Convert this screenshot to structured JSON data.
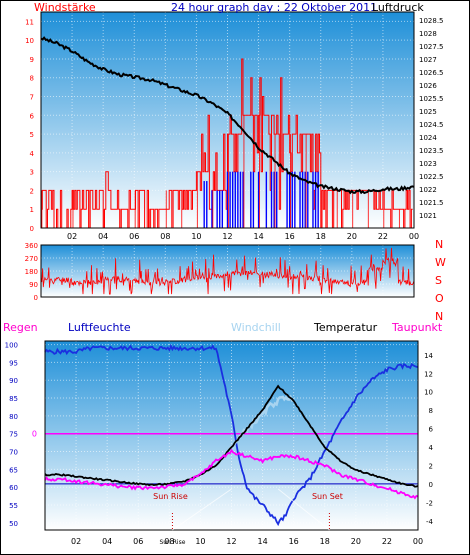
{
  "chart_data": [
    {
      "type": "line",
      "title": "24 hour graph day : 22 Oktober 2011",
      "left_label": "Windstärke",
      "right_label": "Luftdruck",
      "x_ticks": [
        "02",
        "04",
        "06",
        "08",
        "10",
        "12",
        "14",
        "16",
        "18",
        "20",
        "22",
        "00"
      ],
      "y_left_ticks": [
        "0",
        "1",
        "2",
        "3",
        "4",
        "5",
        "6",
        "7",
        "8",
        "9",
        "10",
        "11"
      ],
      "y_right_ticks": [
        "1021",
        "1021.5",
        "1022",
        "1022.5",
        "1023",
        "1023.5",
        "1024",
        "1024.5",
        "1025",
        "1025.5",
        "1026",
        "1026.5",
        "1027",
        "1027.5",
        "1028",
        "1028.5"
      ],
      "y_left_range": [
        0,
        11.5
      ],
      "y_right_range": [
        1020.5,
        1028.8
      ],
      "wind_speed_hourly": [
        2,
        0,
        2,
        2,
        1,
        1,
        2,
        1,
        2,
        2,
        3,
        2,
        5,
        6,
        6,
        5,
        5,
        5,
        2,
        2,
        2,
        2,
        1,
        1
      ],
      "wind_gust_hourly": [
        2,
        2,
        2,
        2,
        3,
        2,
        2,
        2,
        2,
        2,
        6,
        8,
        10,
        9,
        9,
        8,
        8,
        6,
        2,
        2,
        2,
        2,
        2,
        2
      ],
      "pressure": {
        "x": [
          0,
          1,
          2,
          3,
          4,
          5,
          6,
          7,
          8,
          9,
          10,
          11,
          12,
          13,
          14,
          15,
          16,
          17,
          18,
          19,
          20,
          21,
          22,
          23,
          24
        ],
        "y": [
          1027.8,
          1027.6,
          1027.3,
          1026.9,
          1026.6,
          1026.4,
          1026.3,
          1026.2,
          1026.0,
          1025.8,
          1025.6,
          1025.3,
          1024.9,
          1024.3,
          1023.6,
          1023.1,
          1022.6,
          1022.3,
          1022.1,
          1022.0,
          1021.9,
          1021.9,
          1022.0,
          1022.0,
          1022.1
        ]
      }
    },
    {
      "type": "line",
      "title": "",
      "y_ticks": [
        "360",
        "270",
        "180",
        "90",
        "0"
      ],
      "direction_labels": [
        "N",
        "W",
        "S",
        "O",
        "N"
      ],
      "y_range": [
        0,
        360
      ],
      "wind_direction_hourly": [
        120,
        120,
        100,
        100,
        130,
        120,
        110,
        100,
        110,
        120,
        140,
        150,
        160,
        170,
        160,
        150,
        140,
        130,
        110,
        100,
        100,
        200,
        250,
        100
      ]
    },
    {
      "type": "line",
      "title": "",
      "labels": {
        "regen": "Regen",
        "luftfeuchte": "Luftfeuchte",
        "windchill": "Windchill",
        "temperatur": "Temperatur",
        "taupunkt": "Taupunkt",
        "sun_rise": "Sun Rise",
        "sun_set": "Sun Set"
      },
      "rain_zero_label": "0",
      "x_ticks": [
        "02",
        "04",
        "06",
        "08",
        "Sun Rise",
        "10",
        "12",
        "14",
        "16",
        "18",
        "20",
        "22",
        "00"
      ],
      "y_left_ticks": [
        "100",
        "95",
        "90",
        "85",
        "80",
        "75",
        "70",
        "65",
        "60",
        "55",
        "50"
      ],
      "y_right_ticks": [
        "14",
        "12",
        "10",
        "8",
        "6",
        "4",
        "2",
        "0",
        "-2",
        "-4"
      ],
      "humidity_range": [
        48,
        101
      ],
      "temp_range": [
        -5,
        15.5
      ],
      "sun_rise_hour": 8.2,
      "sun_set_hour": 18.3,
      "humidity": {
        "x": [
          0,
          1,
          2,
          3,
          4,
          5,
          6,
          7,
          8,
          9,
          10,
          11,
          11.5,
          12,
          12.5,
          13,
          13.5,
          14,
          15,
          15.5,
          16,
          17,
          18,
          19,
          20,
          21,
          22,
          23,
          24
        ],
        "y": [
          98,
          98,
          98,
          99,
          99,
          99,
          99,
          99,
          99,
          99,
          99,
          99,
          90,
          80,
          68,
          60,
          57,
          55,
          50,
          52,
          57,
          62,
          70,
          78,
          85,
          90,
          93,
          94,
          94
        ]
      },
      "temperature": {
        "x": [
          0,
          1,
          2,
          3,
          4,
          5,
          6,
          7,
          8,
          9,
          10,
          11,
          12,
          13,
          14,
          15,
          16,
          17,
          18,
          19,
          20,
          21,
          22,
          23,
          24
        ],
        "y": [
          1.0,
          1.0,
          0.8,
          0.6,
          0.4,
          0.2,
          0.0,
          -0.1,
          0.0,
          0.3,
          1.0,
          2.0,
          4.0,
          6.0,
          8.0,
          10.6,
          9.0,
          6.5,
          4.0,
          2.5,
          1.5,
          1.0,
          0.5,
          0.0,
          -0.3
        ]
      },
      "windchill": {
        "x": [
          11,
          12,
          13,
          14,
          14.5,
          15,
          15.5,
          16
        ],
        "y": [
          2.0,
          4.0,
          6.0,
          7.5,
          8.5,
          9.0,
          9.5,
          9.0
        ]
      },
      "dewpoint": {
        "x": [
          0,
          1,
          2,
          3,
          4,
          5,
          6,
          7,
          8,
          9,
          10,
          11,
          12,
          13,
          14,
          15,
          16,
          17,
          18,
          19,
          20,
          21,
          22,
          23,
          24
        ],
        "y": [
          0.5,
          0.5,
          0.3,
          0.1,
          -0.1,
          -0.3,
          -0.4,
          -0.4,
          -0.3,
          0.0,
          1.0,
          2.5,
          3.5,
          3.0,
          2.5,
          3.0,
          3.0,
          2.5,
          2.0,
          1.0,
          0.5,
          0.0,
          -0.5,
          -1.0,
          -1.5
        ]
      },
      "rain": 0
    }
  ],
  "colors": {
    "wind": "#ff0000",
    "wind_low": "#0000ff",
    "pressure": "#000000",
    "humidity": "#1a2fe0",
    "temperature": "#000000",
    "windchill": "#a8d4f0",
    "dewpoint": "#ff00ff",
    "rain_line": "#ff00ff",
    "plot_top": "#1e8fd8",
    "plot_bottom": "#ffffff"
  }
}
